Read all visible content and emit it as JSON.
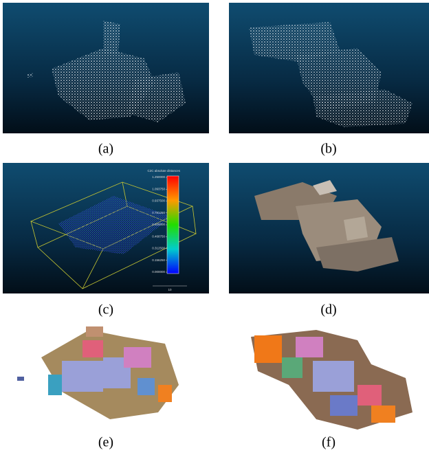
{
  "panels": [
    {
      "caption": "(a)"
    },
    {
      "caption": "(b)"
    },
    {
      "caption": "(c)",
      "colorbar": {
        "title": "C2C absolute distances",
        "ticks": [
          "1.250000",
          "1.093750",
          "0.937500",
          "0.781250",
          "0.625000",
          "0.468750",
          "0.312500",
          "0.156250",
          "0.000000"
        ],
        "scale_label": "10"
      }
    },
    {
      "caption": "(d)"
    },
    {
      "caption": "(e)"
    },
    {
      "caption": "(f)"
    }
  ]
}
